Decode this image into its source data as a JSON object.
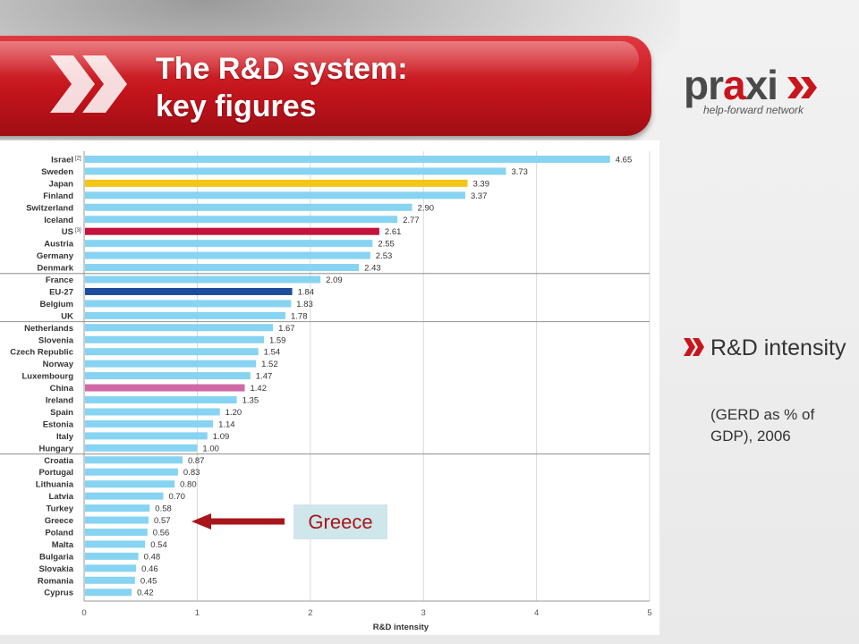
{
  "header": {
    "title_line1": "The R&D system:",
    "title_line2": "key figures"
  },
  "logo": {
    "word_part1": "pr",
    "word_accent": "a",
    "word_part2": "xi",
    "tagline": "help-forward network"
  },
  "side_note": {
    "heading": "R&D intensity",
    "subheading": "(GERD as % of GDP), 2006"
  },
  "callout": {
    "label": "Greece"
  },
  "colors": {
    "banner_red": "#c4141c",
    "bar_default": "#87d3f2",
    "bar_japan": "#f5c518",
    "bar_us": "#c4123c",
    "bar_eu27": "#1c4c9c",
    "bar_china": "#d06aa6",
    "arrow": "#a8161c"
  },
  "chart_data": {
    "type": "bar",
    "orientation": "horizontal",
    "xlabel": "R&D intensity",
    "xlim": [
      0,
      5
    ],
    "xticks": [
      0,
      1,
      2,
      3,
      4,
      5
    ],
    "grid": "vertical",
    "categories": [
      "Israel",
      "Sweden",
      "Japan",
      "Finland",
      "Switzerland",
      "Iceland",
      "US",
      "Austria",
      "Germany",
      "Denmark",
      "France",
      "EU-27",
      "Belgium",
      "UK",
      "Netherlands",
      "Slovenia",
      "Czech Republic",
      "Norway",
      "Luxembourg",
      "China",
      "Ireland",
      "Spain",
      "Estonia",
      "Italy",
      "Hungary",
      "Croatia",
      "Portugal",
      "Lithuania",
      "Latvia",
      "Turkey",
      "Greece",
      "Poland",
      "Malta",
      "Bulgaria",
      "Slovakia",
      "Romania",
      "Cyprus"
    ],
    "values": [
      4.65,
      3.73,
      3.39,
      3.37,
      2.9,
      2.77,
      2.61,
      2.55,
      2.53,
      2.43,
      2.09,
      1.84,
      1.83,
      1.78,
      1.67,
      1.59,
      1.54,
      1.52,
      1.47,
      1.42,
      1.35,
      1.2,
      1.14,
      1.09,
      1.0,
      0.87,
      0.83,
      0.8,
      0.7,
      0.58,
      0.57,
      0.56,
      0.54,
      0.48,
      0.46,
      0.45,
      0.42
    ],
    "value_labels": [
      "4.65",
      "3.73",
      "3.39",
      "3.37",
      "2.90",
      "2.77",
      "2.61",
      "2.55",
      "2.53",
      "2.43",
      "2.09",
      "1.84",
      "1.83",
      "1.78",
      "1.67",
      "1.59",
      "1.54",
      "1.52",
      "1.47",
      "1.42",
      "1.35",
      "1.20",
      "1.14",
      "1.09",
      "1.00",
      "0.87",
      "0.83",
      "0.80",
      "0.70",
      "0.58",
      "0.57",
      "0.56",
      "0.54",
      "0.48",
      "0.46",
      "0.45",
      "0.42"
    ],
    "footnote_marks": {
      "Israel": "[2]",
      "US": "[3]"
    },
    "highlight_colors": {
      "Japan": "#f5c518",
      "US": "#c4123c",
      "EU-27": "#1c4c9c",
      "China": "#d06aa6"
    },
    "group_separators_after": [
      "Denmark",
      "UK",
      "Hungary"
    ]
  }
}
